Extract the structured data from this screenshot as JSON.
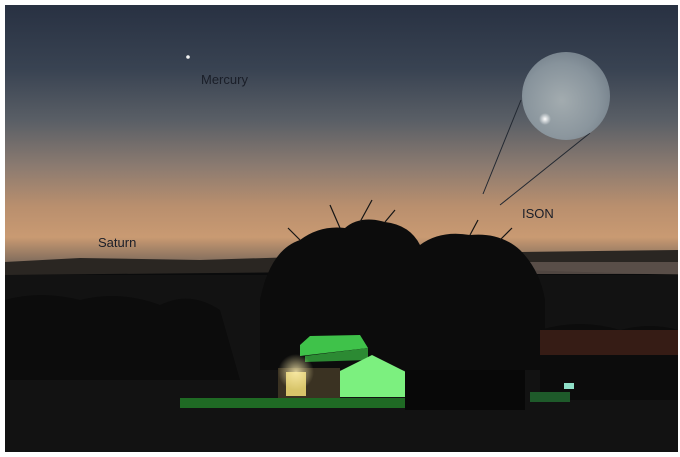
{
  "labels": [
    {
      "id": "mercury",
      "text": "Mercury"
    },
    {
      "id": "ison",
      "text": "ISON"
    },
    {
      "id": "saturn",
      "text": "Saturn"
    }
  ]
}
